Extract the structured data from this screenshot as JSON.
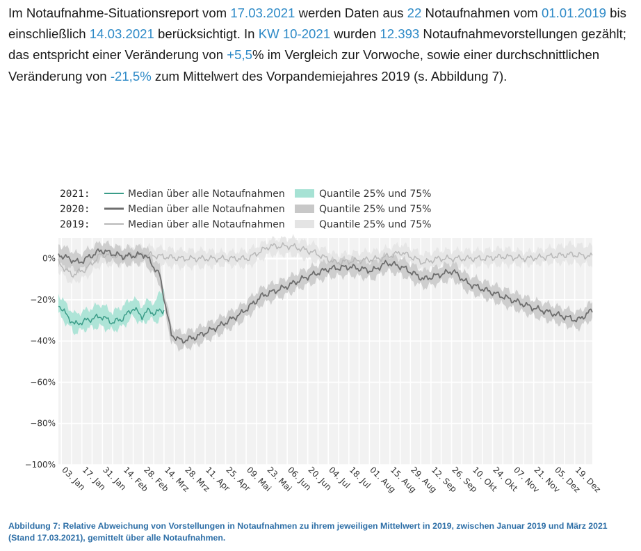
{
  "paragraph": {
    "t1": "Im Notaufnahme-Situationsreport vom ",
    "report_date": "17.03.2021",
    "t2": " werden Daten aus ",
    "count": "22",
    "t3": " Notaufnahmen vom ",
    "start_date": "01.01.2019",
    "t4": " bis einschließlich ",
    "end_date": "14.03.2021",
    "t5": " berücksichtigt. In ",
    "week": "KW 10-2021",
    "t6": " wurden ",
    "visits": "12.393",
    "t7": " Notaufnahmevorstellungen gezählt; das entspricht einer Veränderung von ",
    "change_week": "+5,5",
    "t8": "% im Vergleich zur Vorwoche, sowie einer durchschnittlichen Veränderung von ",
    "change_2019": "-21,5%",
    "t9": " zum Mittelwert des Vorpandemiejahres 2019 (s. Abbildung 7)."
  },
  "caption": "Abbildung 7: Relative Abweichung von Vorstellungen in Notaufnahmen zu ihrem jeweiligen Mittelwert in 2019, zwischen Januar 2019 und März 2021 (Stand 17.03.2021), gemittelt über alle Notaufnahmen.",
  "legend": [
    {
      "year": "2021:",
      "median_label": "Median über alle Notaufnahmen",
      "band_label": "Quantile 25% und 75%",
      "line_color": "#3a9c88",
      "band_color": "#a6e2d4"
    },
    {
      "year": "2020:",
      "median_label": "Median über alle Notaufnahmen",
      "band_label": "Quantile 25% und 75%",
      "line_color": "#6e6e6e",
      "band_color": "#c8c8c8"
    },
    {
      "year": "2019:",
      "median_label": "Median über alle Notaufnahmen",
      "band_label": "Quantile 25% und 75%",
      "line_color": "#b8b8b8",
      "band_color": "#e4e4e4"
    }
  ],
  "chart_data": {
    "type": "line",
    "ylim": [
      -100,
      10
    ],
    "xlim": [
      1,
      365
    ],
    "yticks": [
      0,
      -20,
      -40,
      -60,
      -80,
      -100
    ],
    "ytick_labels": [
      "0%",
      "−20%",
      "−40%",
      "−60%",
      "−80%",
      "−100%"
    ],
    "xticks": [
      3,
      17,
      31,
      45,
      59,
      73,
      87,
      101,
      115,
      129,
      143,
      157,
      171,
      185,
      199,
      213,
      227,
      241,
      255,
      269,
      283,
      297,
      311,
      325,
      339,
      353
    ],
    "xtick_labels": [
      "03. Jan",
      "17. Jan",
      "31. Jan",
      "14. Feb",
      "28. Feb",
      "14. Mrz",
      "28. Mrz",
      "11. Apr",
      "25. Apr",
      "09. Mai",
      "23. Mai",
      "06. Jun",
      "20. Jun",
      "04. Jul",
      "18. Jul",
      "01. Aug",
      "15. Aug",
      "29. Aug",
      "12. Sep",
      "26. Sep",
      "10. Okt",
      "24. Okt",
      "07. Nov",
      "21. Nov",
      "05. Dez",
      "19. Dez"
    ],
    "grid": true,
    "legend_position": "top",
    "series": [
      {
        "name": "2019",
        "x": [
          1,
          10,
          20,
          30,
          45,
          60,
          72,
          85,
          100,
          115,
          130,
          145,
          160,
          175,
          190,
          205,
          220,
          235,
          250,
          260,
          275,
          290,
          305,
          320,
          335,
          350,
          365
        ],
        "median": [
          -2,
          -8,
          -5,
          2,
          1,
          2,
          1,
          0,
          0,
          0,
          0,
          6,
          6,
          3,
          -2,
          -1,
          0,
          3,
          -2,
          0,
          0,
          0,
          1,
          0,
          1,
          2,
          1
        ],
        "q25": [
          -6,
          -12,
          -9,
          -3,
          -3,
          -2,
          -3,
          -4,
          -4,
          -3,
          -4,
          2,
          2,
          -1,
          -5,
          -4,
          -4,
          -1,
          -6,
          -4,
          -4,
          -3,
          -3,
          -3,
          -2,
          -2,
          -3
        ],
        "q75": [
          3,
          -3,
          -1,
          6,
          5,
          6,
          5,
          4,
          4,
          3,
          4,
          9,
          10,
          7,
          2,
          3,
          4,
          7,
          2,
          4,
          4,
          4,
          5,
          3,
          5,
          7,
          6
        ]
      },
      {
        "name": "2020",
        "x": [
          1,
          15,
          30,
          45,
          60,
          70,
          78,
          85,
          95,
          110,
          125,
          140,
          155,
          170,
          185,
          200,
          215,
          225,
          235,
          250,
          260,
          270,
          280,
          295,
          310,
          325,
          340,
          355,
          365
        ],
        "median": [
          2,
          -2,
          4,
          1,
          2,
          -8,
          -37,
          -40,
          -38,
          -33,
          -27,
          -18,
          -14,
          -9,
          -5,
          -4,
          -6,
          -2,
          -4,
          -10,
          -8,
          -6,
          -12,
          -16,
          -20,
          -24,
          -27,
          -30,
          -25
        ],
        "q25": [
          -3,
          -6,
          0,
          -3,
          -2,
          -12,
          -41,
          -44,
          -42,
          -37,
          -31,
          -22,
          -18,
          -13,
          -9,
          -8,
          -10,
          -6,
          -8,
          -14,
          -12,
          -10,
          -16,
          -20,
          -24,
          -28,
          -31,
          -34,
          -29
        ],
        "q75": [
          7,
          2,
          8,
          5,
          6,
          -4,
          -33,
          -36,
          -34,
          -29,
          -23,
          -14,
          -10,
          -5,
          -1,
          0,
          -2,
          2,
          0,
          -6,
          -4,
          -2,
          -8,
          -12,
          -16,
          -20,
          -23,
          -26,
          -21
        ]
      },
      {
        "name": "2021",
        "x": [
          1,
          6,
          12,
          20,
          30,
          38,
          45,
          52,
          58,
          63,
          67,
          70,
          73
        ],
        "median": [
          -22,
          -27,
          -32,
          -30,
          -28,
          -31,
          -29,
          -24,
          -28,
          -25,
          -27,
          -25,
          -25
        ],
        "q25": [
          -27,
          -31,
          -36,
          -34,
          -33,
          -35,
          -33,
          -28,
          -32,
          -29,
          -31,
          -29,
          -29
        ],
        "q75": [
          -17,
          -22,
          -27,
          -25,
          -22,
          -26,
          -23,
          -19,
          -23,
          -20,
          -22,
          -16,
          -14
        ]
      }
    ]
  }
}
